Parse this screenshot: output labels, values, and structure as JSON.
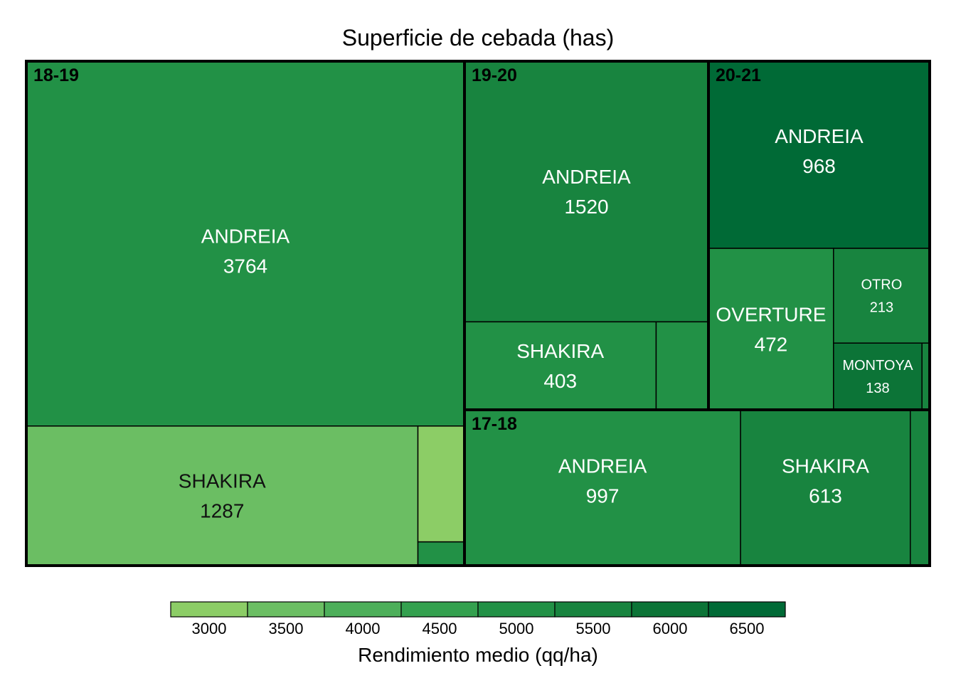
{
  "chart_data": {
    "type": "treemap",
    "title": "Superficie de cebada (has)",
    "groups": [
      {
        "name": "18-19",
        "leaves": [
          {
            "name": "ANDREIA",
            "value": 3764,
            "yield": 5250
          },
          {
            "name": "SHAKIRA",
            "value": 1287,
            "yield": 3500
          },
          {
            "name": "",
            "value": 127,
            "yield": 3000
          },
          {
            "name": "",
            "value": 26,
            "yield": 5000
          }
        ]
      },
      {
        "name": "19-20",
        "leaves": [
          {
            "name": "ANDREIA",
            "value": 1520,
            "yield": 5500
          },
          {
            "name": "SHAKIRA",
            "value": 403,
            "yield": 5250
          },
          {
            "name": "",
            "value": 110,
            "yield": 5250
          }
        ]
      },
      {
        "name": "20-21",
        "leaves": [
          {
            "name": "ANDREIA",
            "value": 968,
            "yield": 6500
          },
          {
            "name": "OVERTURE",
            "value": 472,
            "yield": 5250
          },
          {
            "name": "OTRO",
            "value": 213,
            "yield": 5500
          },
          {
            "name": "MONTOYA",
            "value": 138,
            "yield": 6000
          },
          {
            "name": "",
            "value": 12,
            "yield": 5500
          }
        ]
      },
      {
        "name": "17-18",
        "leaves": [
          {
            "name": "ANDREIA",
            "value": 997,
            "yield": 5250
          },
          {
            "name": "SHAKIRA",
            "value": 613,
            "yield": 5500
          },
          {
            "name": "",
            "value": 70,
            "yield": 5500
          }
        ]
      }
    ],
    "legend": {
      "title": "Rendimiento medio (qq/ha)",
      "ticks": [
        3000,
        3500,
        4000,
        4500,
        5000,
        5500,
        6000,
        6500
      ],
      "colors": [
        "#8ccd66",
        "#6bbe63",
        "#4daf5a",
        "#34a14f",
        "#229146",
        "#18843f",
        "#0c7437",
        "#006a36"
      ]
    }
  }
}
